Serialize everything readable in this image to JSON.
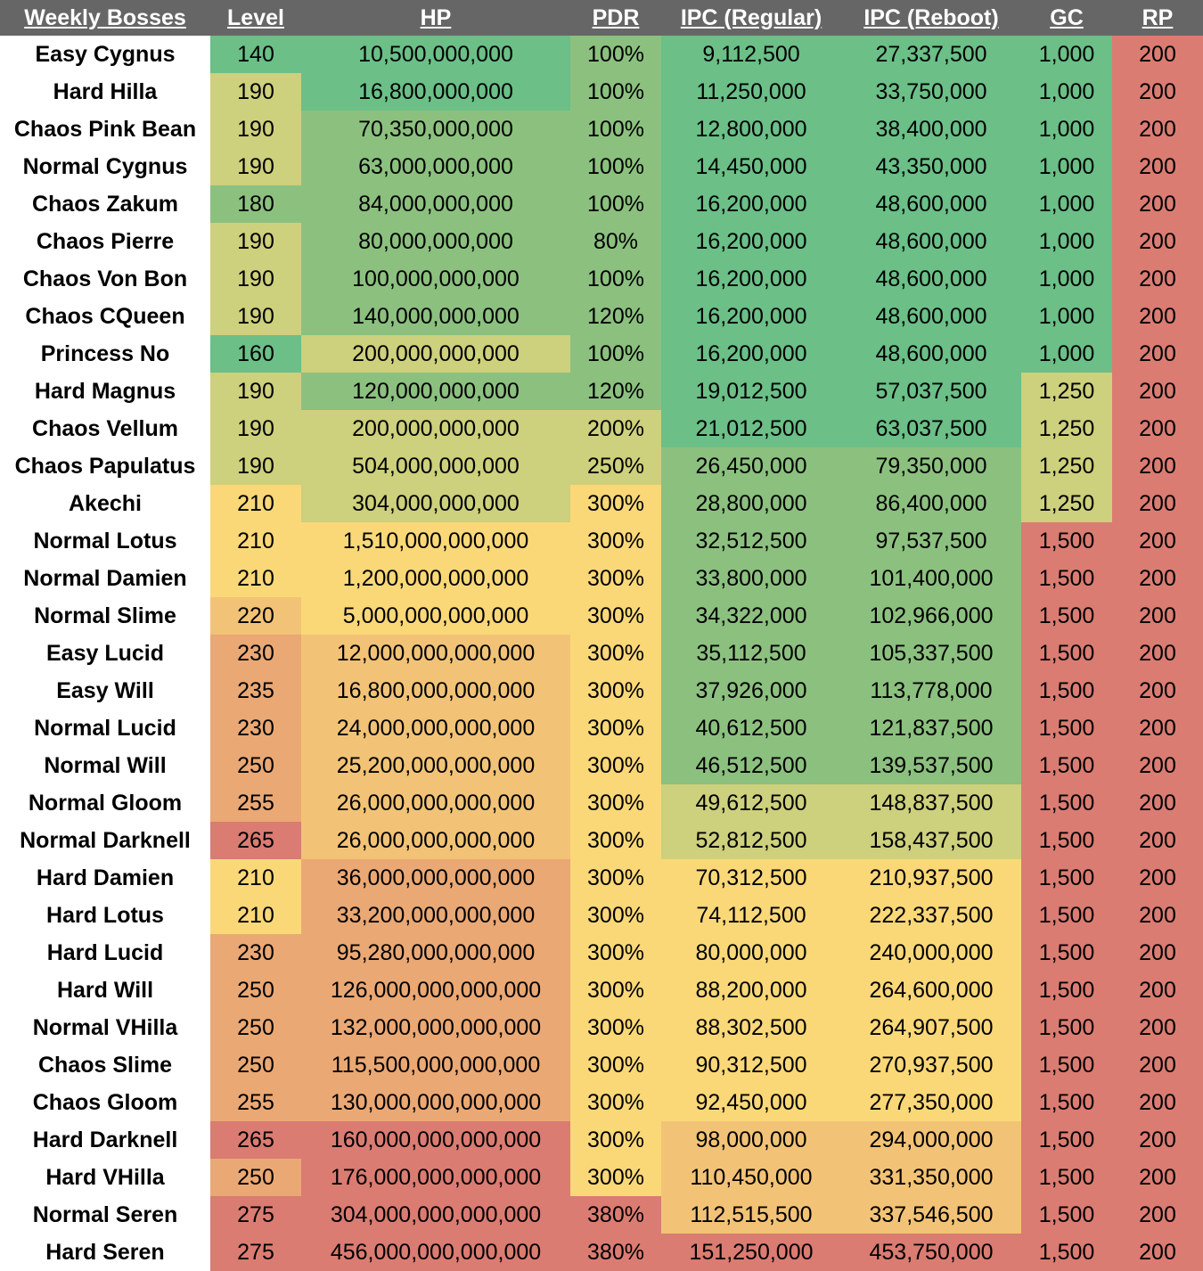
{
  "headers": [
    "Weekly Bosses",
    "Level",
    "HP",
    "PDR",
    "IPC (Regular)",
    "IPC (Reboot)",
    "GC",
    "RP"
  ],
  "colors": {
    "header_bg": "#666666",
    "green": "#6bbf87",
    "light_green": "#8cc07f",
    "yellow_green": "#cdd07c",
    "yellow": "#fad878",
    "light_orange": "#f2c376",
    "orange": "#eaa874",
    "red": "#da7c72"
  },
  "rows": [
    {
      "name": "Easy Cygnus",
      "level": "140",
      "hp": "10,500,000,000",
      "pdr": "100%",
      "ipc_regular": "9,112,500",
      "ipc_reboot": "27,337,500",
      "gc": "1,000",
      "rp": "200"
    },
    {
      "name": "Hard Hilla",
      "level": "190",
      "hp": "16,800,000,000",
      "pdr": "100%",
      "ipc_regular": "11,250,000",
      "ipc_reboot": "33,750,000",
      "gc": "1,000",
      "rp": "200"
    },
    {
      "name": "Chaos Pink Bean",
      "level": "190",
      "hp": "70,350,000,000",
      "pdr": "100%",
      "ipc_regular": "12,800,000",
      "ipc_reboot": "38,400,000",
      "gc": "1,000",
      "rp": "200"
    },
    {
      "name": "Normal Cygnus",
      "level": "190",
      "hp": "63,000,000,000",
      "pdr": "100%",
      "ipc_regular": "14,450,000",
      "ipc_reboot": "43,350,000",
      "gc": "1,000",
      "rp": "200"
    },
    {
      "name": "Chaos Zakum",
      "level": "180",
      "hp": "84,000,000,000",
      "pdr": "100%",
      "ipc_regular": "16,200,000",
      "ipc_reboot": "48,600,000",
      "gc": "1,000",
      "rp": "200"
    },
    {
      "name": "Chaos Pierre",
      "level": "190",
      "hp": "80,000,000,000",
      "pdr": "80%",
      "ipc_regular": "16,200,000",
      "ipc_reboot": "48,600,000",
      "gc": "1,000",
      "rp": "200"
    },
    {
      "name": "Chaos Von Bon",
      "level": "190",
      "hp": "100,000,000,000",
      "pdr": "100%",
      "ipc_regular": "16,200,000",
      "ipc_reboot": "48,600,000",
      "gc": "1,000",
      "rp": "200"
    },
    {
      "name": "Chaos CQueen",
      "level": "190",
      "hp": "140,000,000,000",
      "pdr": "120%",
      "ipc_regular": "16,200,000",
      "ipc_reboot": "48,600,000",
      "gc": "1,000",
      "rp": "200"
    },
    {
      "name": "Princess No",
      "level": "160",
      "hp": "200,000,000,000",
      "pdr": "100%",
      "ipc_regular": "16,200,000",
      "ipc_reboot": "48,600,000",
      "gc": "1,000",
      "rp": "200"
    },
    {
      "name": "Hard Magnus",
      "level": "190",
      "hp": "120,000,000,000",
      "pdr": "120%",
      "ipc_regular": "19,012,500",
      "ipc_reboot": "57,037,500",
      "gc": "1,250",
      "rp": "200"
    },
    {
      "name": "Chaos Vellum",
      "level": "190",
      "hp": "200,000,000,000",
      "pdr": "200%",
      "ipc_regular": "21,012,500",
      "ipc_reboot": "63,037,500",
      "gc": "1,250",
      "rp": "200"
    },
    {
      "name": "Chaos Papulatus",
      "level": "190",
      "hp": "504,000,000,000",
      "pdr": "250%",
      "ipc_regular": "26,450,000",
      "ipc_reboot": "79,350,000",
      "gc": "1,250",
      "rp": "200"
    },
    {
      "name": "Akechi",
      "level": "210",
      "hp": "304,000,000,000",
      "pdr": "300%",
      "ipc_regular": "28,800,000",
      "ipc_reboot": "86,400,000",
      "gc": "1,250",
      "rp": "200"
    },
    {
      "name": "Normal Lotus",
      "level": "210",
      "hp": "1,510,000,000,000",
      "pdr": "300%",
      "ipc_regular": "32,512,500",
      "ipc_reboot": "97,537,500",
      "gc": "1,500",
      "rp": "200"
    },
    {
      "name": "Normal Damien",
      "level": "210",
      "hp": "1,200,000,000,000",
      "pdr": "300%",
      "ipc_regular": "33,800,000",
      "ipc_reboot": "101,400,000",
      "gc": "1,500",
      "rp": "200"
    },
    {
      "name": "Normal Slime",
      "level": "220",
      "hp": "5,000,000,000,000",
      "pdr": "300%",
      "ipc_regular": "34,322,000",
      "ipc_reboot": "102,966,000",
      "gc": "1,500",
      "rp": "200"
    },
    {
      "name": "Easy Lucid",
      "level": "230",
      "hp": "12,000,000,000,000",
      "pdr": "300%",
      "ipc_regular": "35,112,500",
      "ipc_reboot": "105,337,500",
      "gc": "1,500",
      "rp": "200"
    },
    {
      "name": "Easy Will",
      "level": "235",
      "hp": "16,800,000,000,000",
      "pdr": "300%",
      "ipc_regular": "37,926,000",
      "ipc_reboot": "113,778,000",
      "gc": "1,500",
      "rp": "200"
    },
    {
      "name": "Normal Lucid",
      "level": "230",
      "hp": "24,000,000,000,000",
      "pdr": "300%",
      "ipc_regular": "40,612,500",
      "ipc_reboot": "121,837,500",
      "gc": "1,500",
      "rp": "200"
    },
    {
      "name": "Normal Will",
      "level": "250",
      "hp": "25,200,000,000,000",
      "pdr": "300%",
      "ipc_regular": "46,512,500",
      "ipc_reboot": "139,537,500",
      "gc": "1,500",
      "rp": "200"
    },
    {
      "name": "Normal Gloom",
      "level": "255",
      "hp": "26,000,000,000,000",
      "pdr": "300%",
      "ipc_regular": "49,612,500",
      "ipc_reboot": "148,837,500",
      "gc": "1,500",
      "rp": "200"
    },
    {
      "name": "Normal Darknell",
      "level": "265",
      "hp": "26,000,000,000,000",
      "pdr": "300%",
      "ipc_regular": "52,812,500",
      "ipc_reboot": "158,437,500",
      "gc": "1,500",
      "rp": "200"
    },
    {
      "name": "Hard Damien",
      "level": "210",
      "hp": "36,000,000,000,000",
      "pdr": "300%",
      "ipc_regular": "70,312,500",
      "ipc_reboot": "210,937,500",
      "gc": "1,500",
      "rp": "200"
    },
    {
      "name": "Hard Lotus",
      "level": "210",
      "hp": "33,200,000,000,000",
      "pdr": "300%",
      "ipc_regular": "74,112,500",
      "ipc_reboot": "222,337,500",
      "gc": "1,500",
      "rp": "200"
    },
    {
      "name": "Hard Lucid",
      "level": "230",
      "hp": "95,280,000,000,000",
      "pdr": "300%",
      "ipc_regular": "80,000,000",
      "ipc_reboot": "240,000,000",
      "gc": "1,500",
      "rp": "200"
    },
    {
      "name": "Hard Will",
      "level": "250",
      "hp": "126,000,000,000,000",
      "pdr": "300%",
      "ipc_regular": "88,200,000",
      "ipc_reboot": "264,600,000",
      "gc": "1,500",
      "rp": "200"
    },
    {
      "name": "Normal VHilla",
      "level": "250",
      "hp": "132,000,000,000,000",
      "pdr": "300%",
      "ipc_regular": "88,302,500",
      "ipc_reboot": "264,907,500",
      "gc": "1,500",
      "rp": "200"
    },
    {
      "name": "Chaos Slime",
      "level": "250",
      "hp": "115,500,000,000,000",
      "pdr": "300%",
      "ipc_regular": "90,312,500",
      "ipc_reboot": "270,937,500",
      "gc": "1,500",
      "rp": "200"
    },
    {
      "name": "Chaos Gloom",
      "level": "255",
      "hp": "130,000,000,000,000",
      "pdr": "300%",
      "ipc_regular": "92,450,000",
      "ipc_reboot": "277,350,000",
      "gc": "1,500",
      "rp": "200"
    },
    {
      "name": "Hard Darknell",
      "level": "265",
      "hp": "160,000,000,000,000",
      "pdr": "300%",
      "ipc_regular": "98,000,000",
      "ipc_reboot": "294,000,000",
      "gc": "1,500",
      "rp": "200"
    },
    {
      "name": "Hard VHilla",
      "level": "250",
      "hp": "176,000,000,000,000",
      "pdr": "300%",
      "ipc_regular": "110,450,000",
      "ipc_reboot": "331,350,000",
      "gc": "1,500",
      "rp": "200"
    },
    {
      "name": "Normal Seren",
      "level": "275",
      "hp": "304,000,000,000,000",
      "pdr": "380%",
      "ipc_regular": "112,515,500",
      "ipc_reboot": "337,546,500",
      "gc": "1,500",
      "rp": "200"
    },
    {
      "name": "Hard Seren",
      "level": "275",
      "hp": "456,000,000,000,000",
      "pdr": "380%",
      "ipc_regular": "151,250,000",
      "ipc_reboot": "453,750,000",
      "gc": "1,500",
      "rp": "200"
    }
  ]
}
